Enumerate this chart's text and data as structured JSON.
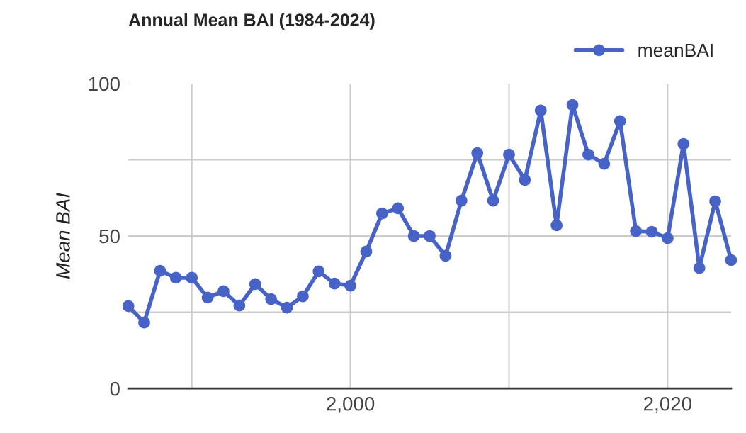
{
  "chart_data": {
    "type": "line",
    "title": "Annual Mean BAI (1984-2024)",
    "ylabel": "Mean BAI",
    "x": [
      1986,
      1987,
      1988,
      1989,
      1990,
      1991,
      1992,
      1993,
      1994,
      1995,
      1996,
      1997,
      1998,
      1999,
      2000,
      2001,
      2002,
      2003,
      2004,
      2005,
      2006,
      2007,
      2008,
      2009,
      2010,
      2011,
      2012,
      2013,
      2014,
      2015,
      2016,
      2017,
      2018,
      2019,
      2020,
      2021,
      2022,
      2023,
      2024
    ],
    "series": [
      {
        "name": "meanBAI",
        "color": "#4863c8",
        "values": [
          27.0,
          21.6,
          38.6,
          36.3,
          36.3,
          29.8,
          31.9,
          27.2,
          34.2,
          29.3,
          26.5,
          30.2,
          38.4,
          34.4,
          33.7,
          44.9,
          57.4,
          59.1,
          50.0,
          50.0,
          43.5,
          61.6,
          77.2,
          61.6,
          76.7,
          68.4,
          91.2,
          53.5,
          93.0,
          76.7,
          73.7,
          87.7,
          51.6,
          51.4,
          49.3,
          80.2,
          39.5,
          61.4,
          42.1
        ]
      }
    ],
    "xlim": [
      1986,
      2024
    ],
    "xticks": [
      {
        "value": 1990,
        "label": null
      },
      {
        "value": 2000,
        "label": "2,000"
      },
      {
        "value": 2010,
        "label": null
      },
      {
        "value": 2020,
        "label": "2,020"
      }
    ],
    "ylim": [
      0,
      100
    ],
    "yticks": [
      0,
      {
        "value": 25,
        "label": null
      },
      50,
      {
        "value": 75,
        "label": null
      },
      100
    ],
    "grid": true,
    "legend": "top right",
    "marker": "circle",
    "line_style": "solid"
  }
}
